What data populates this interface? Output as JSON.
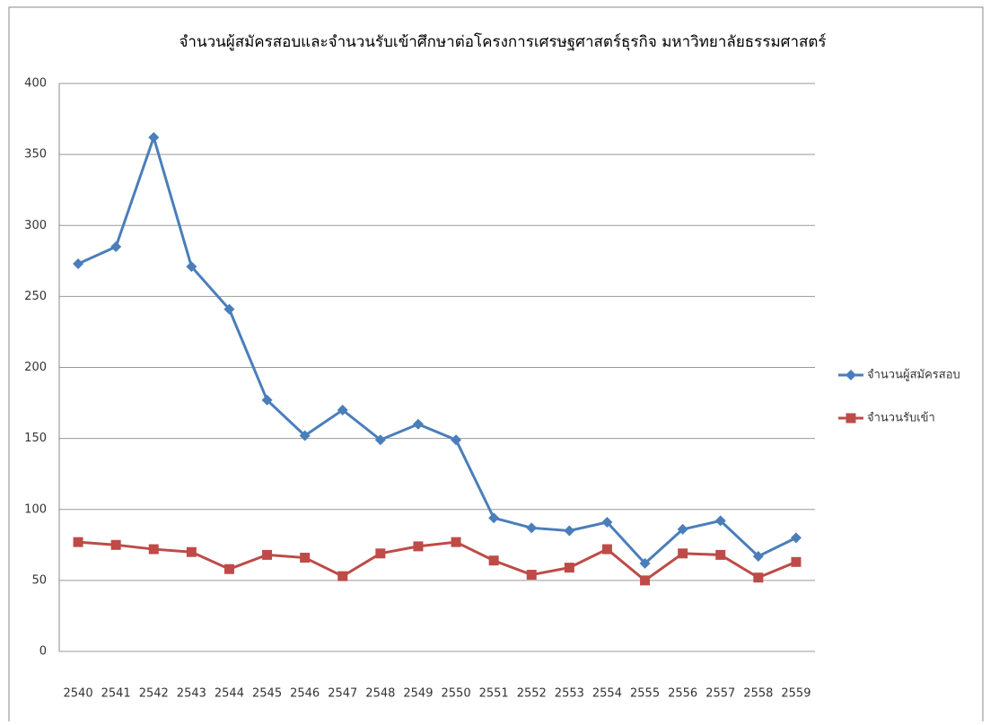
{
  "chart_data": {
    "type": "line",
    "title": "จำนวนผู้สมัครสอบและจำนวนรับเข้าศึกษาต่อโครงการเศรษฐศาสตร์ธุรกิจ มหาวิทยาลัยธรรมศาสตร์",
    "categories": [
      "2540",
      "2541",
      "2542",
      "2543",
      "2544",
      "2545",
      "2546",
      "2547",
      "2548",
      "2549",
      "2550",
      "2551",
      "2552",
      "2553",
      "2554",
      "2555",
      "2556",
      "2557",
      "2558",
      "2559"
    ],
    "series": [
      {
        "name": "จำนวนผู้สมัครสอบ",
        "color": "#4a7ebb",
        "marker": "diamond",
        "values": [
          273,
          285,
          362,
          271,
          241,
          177,
          152,
          170,
          149,
          160,
          149,
          94,
          87,
          85,
          91,
          62,
          86,
          92,
          67,
          80
        ]
      },
      {
        "name": "จำนวนรับเข้า",
        "color": "#be4b48",
        "marker": "square",
        "values": [
          77,
          75,
          72,
          70,
          58,
          68,
          66,
          53,
          69,
          74,
          77,
          64,
          54,
          59,
          72,
          50,
          69,
          68,
          52,
          63
        ]
      }
    ],
    "ylim": [
      0,
      400
    ],
    "yticks": [
      0,
      50,
      100,
      150,
      200,
      250,
      300,
      350,
      400
    ],
    "grid": true,
    "legend": "right"
  }
}
